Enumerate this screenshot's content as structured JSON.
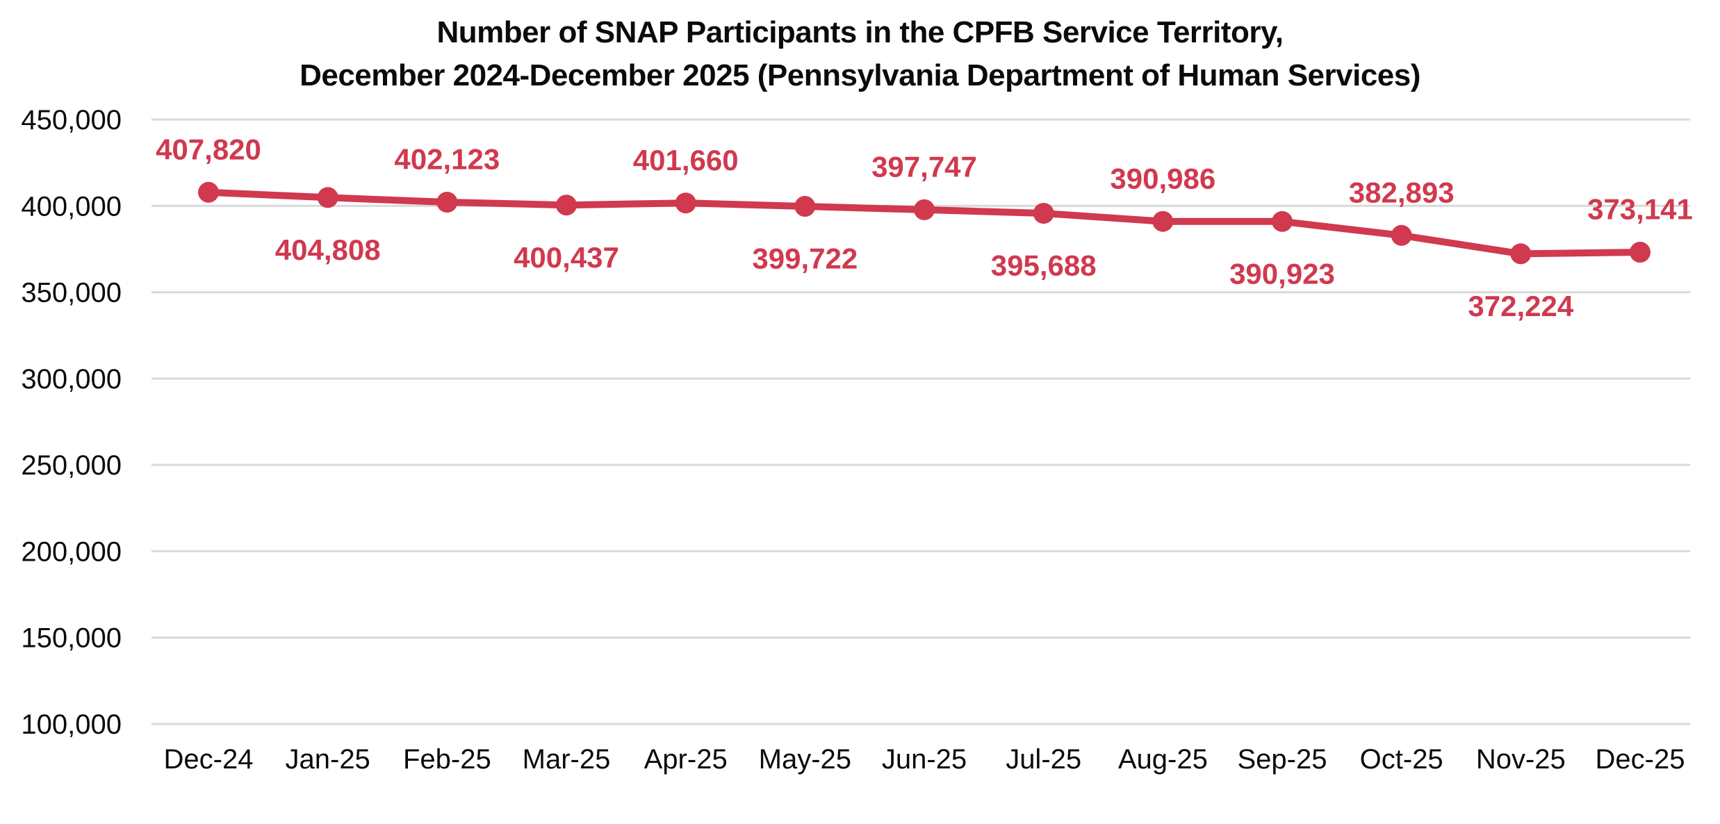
{
  "title": {
    "line1": "Number of SNAP Participants in the CPFB Service Territory,",
    "line2": "December 2024-December 2025 (Pennsylvania Department of Human Services)"
  },
  "colors": {
    "line": "#D0394E",
    "data_label": "#D0394E",
    "grid": "#D9D9D9",
    "axis_text": "#0B0B0B",
    "background": "#FFFFFF"
  },
  "chart_data": {
    "type": "line",
    "title": "Number of SNAP Participants in the CPFB Service Territory, December 2024-December 2025 (Pennsylvania Department of Human Services)",
    "xlabel": "",
    "ylabel": "",
    "ylim": [
      100000,
      450000
    ],
    "grid": "horizontal",
    "legend": "none",
    "categories": [
      "Dec-24",
      "Jan-25",
      "Feb-25",
      "Mar-25",
      "Apr-25",
      "May-25",
      "Jun-25",
      "Jul-25",
      "Aug-25",
      "Sep-25",
      "Oct-25",
      "Nov-25",
      "Dec-25"
    ],
    "series": [
      {
        "name": "SNAP Participants",
        "values": [
          407820,
          404808,
          402123,
          400437,
          401660,
          399722,
          397747,
          395688,
          390986,
          390923,
          382893,
          372224,
          373141
        ],
        "point_labels": [
          "407,820",
          "404,808",
          "402,123",
          "400,437",
          "401,660",
          "399,722",
          "397,747",
          "395,688",
          "390,986",
          "390,923",
          "382,893",
          "372,224",
          "373,141"
        ],
        "label_positions": [
          "above",
          "below",
          "above",
          "below",
          "above",
          "below",
          "above",
          "below",
          "above",
          "below",
          "above",
          "below",
          "above"
        ]
      }
    ],
    "y_ticks": [
      {
        "value": 450000,
        "label": "450,000"
      },
      {
        "value": 400000,
        "label": "400,000"
      },
      {
        "value": 350000,
        "label": "350,000"
      },
      {
        "value": 300000,
        "label": "300,000"
      },
      {
        "value": 250000,
        "label": "250,000"
      },
      {
        "value": 200000,
        "label": "200,000"
      },
      {
        "value": 150000,
        "label": "150,000"
      },
      {
        "value": 100000,
        "label": "100,000"
      }
    ]
  }
}
